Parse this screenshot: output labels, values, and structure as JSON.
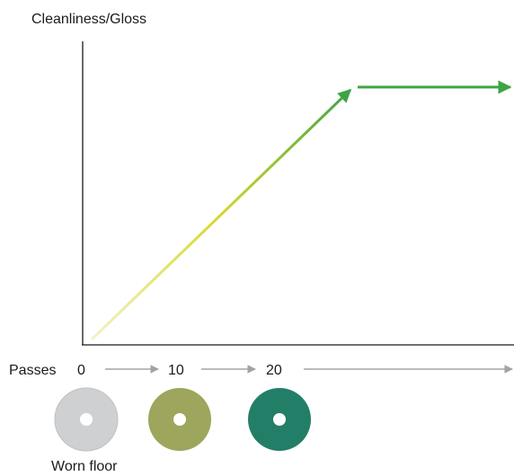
{
  "diagram": {
    "y_label": "Cleanliness/Gloss",
    "x_label": "Passes",
    "pass_ticks": [
      "0",
      "10",
      "20"
    ],
    "pads": [
      {
        "name": "light-gray-pad",
        "color": "#cfd0d2"
      },
      {
        "name": "olive-green-pad",
        "color": "#9ea55c"
      },
      {
        "name": "teal-green-pad",
        "color": "#237e67"
      }
    ],
    "caption": "Worn floor",
    "colors": {
      "axis": "#1a1a1a",
      "curve_start": "#f6f2c8",
      "curve_mid": "#d5d82c",
      "curve_end": "#3da444",
      "pass_arrow": "#a3a3a3"
    }
  }
}
